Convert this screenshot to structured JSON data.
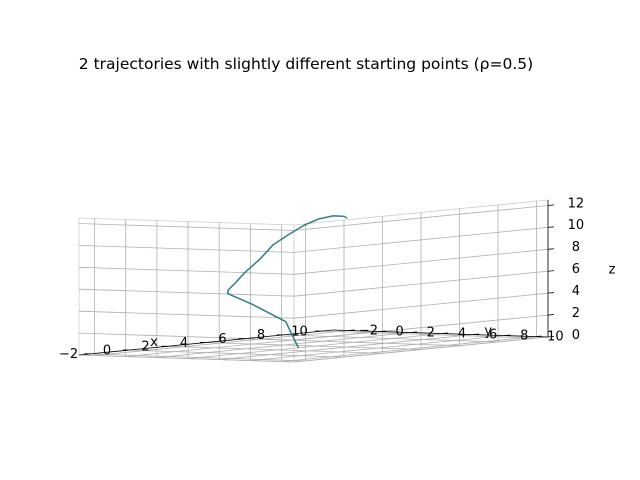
{
  "chart_data": {
    "type": "line",
    "projection": "3d",
    "title": "2 trajectories with slightly different starting points (ρ=0.5)",
    "xlabel": "x",
    "ylabel": "y",
    "zlabel": "z",
    "xlim": [
      -2.6,
      10.6
    ],
    "ylim": [
      -3.0,
      10.8
    ],
    "zlim": [
      0,
      12.5
    ],
    "xticks": [
      -2,
      0,
      2,
      4,
      6,
      8,
      10
    ],
    "yticks": [
      -2,
      0,
      2,
      4,
      6,
      8,
      10
    ],
    "zticks": [
      0,
      2,
      4,
      6,
      8,
      10,
      12
    ],
    "grid": true,
    "series": [
      {
        "color": "#1f77b4",
        "points": [
          [
            -0.2,
            8.1,
            0.8
          ],
          [
            -0.6,
            7.8,
            3.2
          ],
          [
            -1.6,
            6.9,
            4.9
          ],
          [
            -2.4,
            6.3,
            6.0
          ],
          [
            -2.3,
            6.2,
            6.3
          ],
          [
            -1.3,
            5.4,
            6.7
          ],
          [
            0.3,
            4.1,
            7.4
          ],
          [
            2.2,
            2.7,
            8.2
          ],
          [
            4.0,
            1.3,
            9.1
          ],
          [
            5.6,
            0.3,
            9.7
          ],
          [
            7.0,
            -0.4,
            10.3
          ],
          [
            8.3,
            -1.1,
            10.6
          ],
          [
            9.4,
            -1.5,
            10.7
          ],
          [
            10.2,
            -1.8,
            10.5
          ],
          [
            10.5,
            -2.0,
            10.3
          ]
        ]
      },
      {
        "color": "#2f7f6f",
        "points": [
          [
            -0.2,
            8.1,
            0.8
          ],
          [
            -0.6,
            7.8,
            3.2
          ],
          [
            -1.6,
            6.9,
            4.9
          ],
          [
            -2.4,
            6.3,
            6.0
          ],
          [
            -2.3,
            6.2,
            6.3
          ],
          [
            -1.3,
            5.4,
            6.7
          ],
          [
            0.3,
            4.1,
            7.4
          ],
          [
            2.2,
            2.7,
            8.2
          ],
          [
            4.0,
            1.3,
            9.1
          ],
          [
            5.6,
            0.3,
            9.7
          ],
          [
            7.0,
            -0.4,
            10.3
          ],
          [
            8.3,
            -1.1,
            10.6
          ],
          [
            9.4,
            -1.5,
            10.7
          ],
          [
            10.2,
            -1.8,
            10.5
          ],
          [
            10.5,
            -2.0,
            10.3
          ]
        ]
      }
    ]
  }
}
